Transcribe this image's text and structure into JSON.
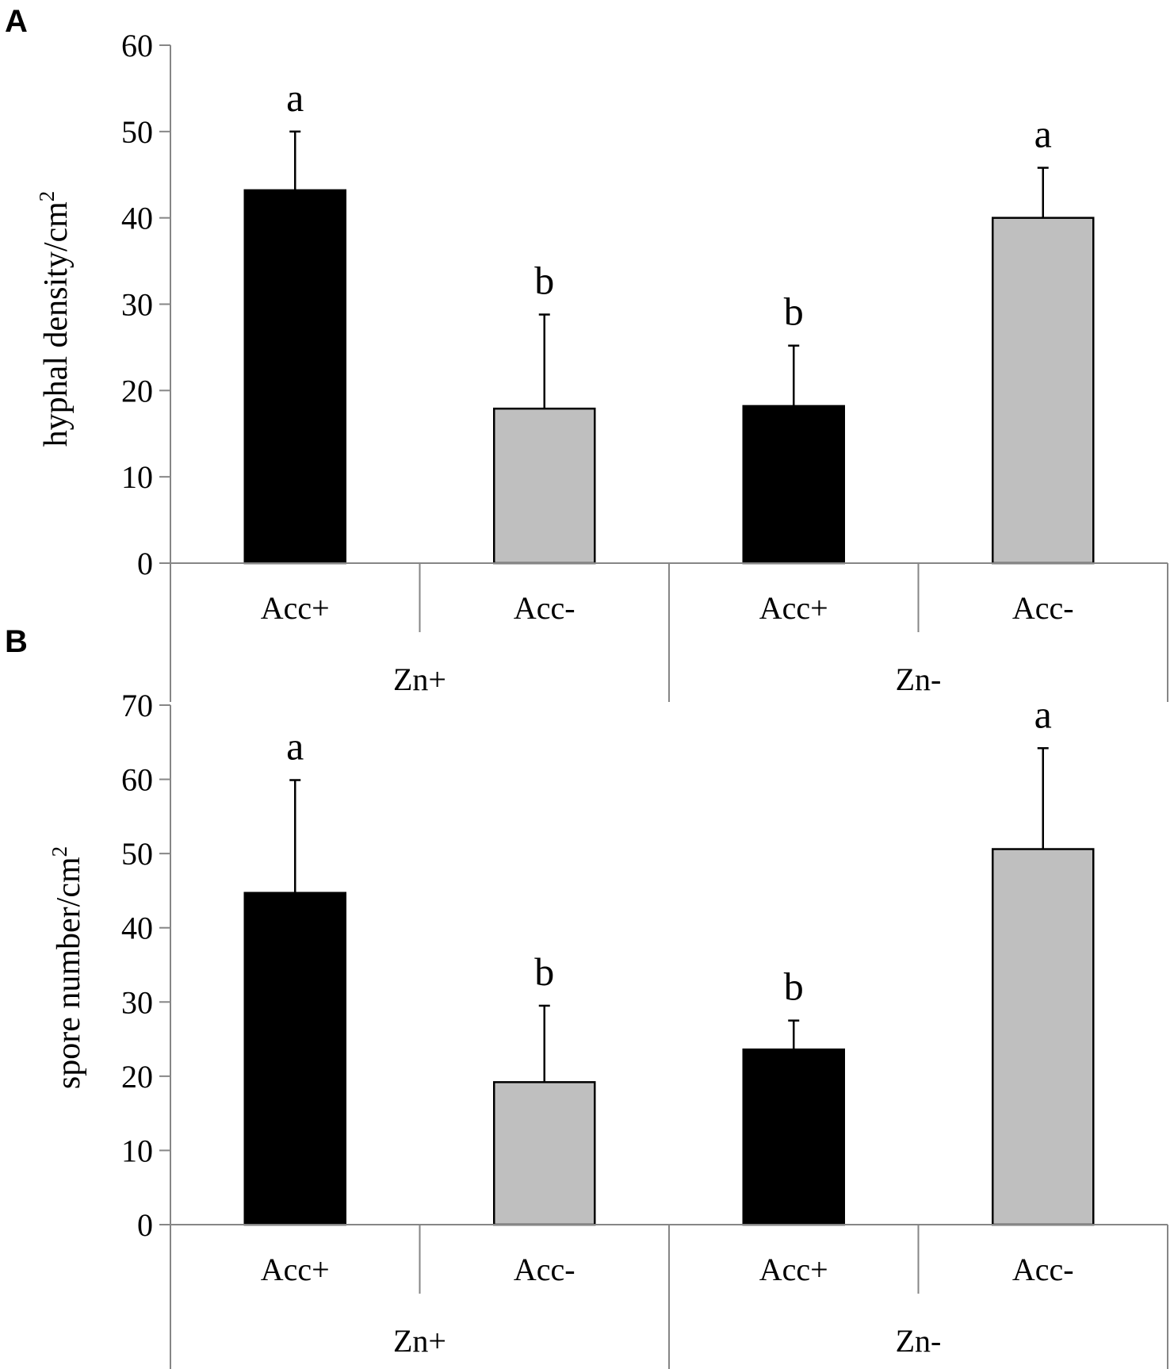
{
  "colors": {
    "black_bar": "#000000",
    "gray_bar": "#bfbfbf",
    "axis": "#868686",
    "text": "#000000"
  },
  "chart_data": [
    {
      "panel_label": "A",
      "type": "bar",
      "ylabel": "hyphal density/cm",
      "ylabel_superscript": "2",
      "ylim": [
        0,
        60
      ],
      "yticks": [
        "0",
        "10",
        "20",
        "30",
        "40",
        "50",
        "60"
      ],
      "categories": [
        "Acc+",
        "Acc-",
        "Acc+",
        "Acc-"
      ],
      "groups": [
        "Zn+",
        "Zn-"
      ],
      "values": [
        43.2,
        17.9,
        18.2,
        40.0
      ],
      "errors": [
        6.8,
        10.9,
        7.0,
        5.8
      ],
      "bar_colors": [
        "black",
        "gray",
        "black",
        "gray"
      ],
      "significance_letters": [
        "a",
        "b",
        "b",
        "a"
      ]
    },
    {
      "panel_label": "B",
      "type": "bar",
      "ylabel": "spore number/cm",
      "ylabel_superscript": "2",
      "ylim": [
        0,
        70
      ],
      "yticks": [
        "0",
        "10",
        "20",
        "30",
        "40",
        "50",
        "60",
        "70"
      ],
      "categories": [
        "Acc+",
        "Acc-",
        "Acc+",
        "Acc-"
      ],
      "groups": [
        "Zn+",
        "Zn-"
      ],
      "values": [
        44.7,
        19.2,
        23.6,
        50.6
      ],
      "errors": [
        15.2,
        10.3,
        3.9,
        13.6
      ],
      "bar_colors": [
        "black",
        "gray",
        "black",
        "gray"
      ],
      "significance_letters": [
        "a",
        "b",
        "b",
        "a"
      ]
    }
  ]
}
